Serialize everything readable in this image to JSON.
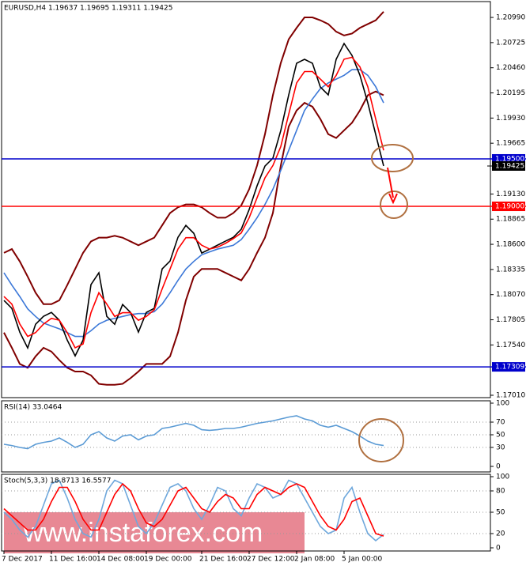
{
  "chart_data": [
    {
      "type": "line",
      "title": "EURUSD,H4  1.19637 1.19695 1.19311 1.19425",
      "categories": [
        "7 Dec 2017",
        null,
        null,
        null,
        null,
        null,
        "11 Dec 16:00",
        null,
        null,
        null,
        null,
        null,
        "14 Dec 08:00",
        null,
        null,
        null,
        null,
        null,
        "19 Dec 00:00",
        null,
        null,
        null,
        null,
        null,
        null,
        "21 Dec 16:00",
        null,
        null,
        null,
        null,
        null,
        "27 Dec 12:00",
        null,
        null,
        null,
        null,
        null,
        "2 Jan 08:00",
        null,
        null,
        null,
        null,
        null,
        "5 Jan 00:00",
        null,
        null,
        null,
        null,
        null
      ],
      "series": [
        {
          "color": "#800000",
          "values": [
            1.1851,
            1.1855,
            1.1842,
            1.1826,
            1.1809,
            1.1797,
            1.1797,
            1.1801,
            1.1817,
            1.1834,
            1.1851,
            1.1863,
            1.1867,
            1.1867,
            1.1869,
            1.1867,
            1.1863,
            1.1859,
            1.1863,
            1.1867,
            1.188,
            1.1893,
            1.1899,
            1.1902,
            1.1902,
            1.1899,
            1.1893,
            1.1888,
            1.1888,
            1.1893,
            1.1901,
            1.1918,
            1.1943,
            1.1976,
            1.2017,
            1.2051,
            1.2076,
            1.2088,
            1.2099,
            1.2099,
            1.2096,
            1.2092,
            1.2084,
            1.208,
            1.2082,
            1.2088,
            1.2092,
            1.2096,
            1.2105
          ]
        },
        {
          "color": "#800000",
          "values": [
            1.1767,
            1.1751,
            1.1734,
            1.173,
            1.1742,
            1.1751,
            1.1747,
            1.1738,
            1.173,
            1.1726,
            1.1726,
            1.1722,
            1.1713,
            1.1712,
            1.1712,
            1.1713,
            1.1719,
            1.1726,
            1.1734,
            1.1734,
            1.1734,
            1.1742,
            1.1767,
            1.1801,
            1.1826,
            1.1834,
            1.1834,
            1.1834,
            1.183,
            1.1826,
            1.1822,
            1.1834,
            1.1851,
            1.1867,
            1.1893,
            1.1943,
            1.1984,
            1.2001,
            1.2009,
            1.2005,
            1.1992,
            1.1976,
            1.1972,
            1.198,
            1.1988,
            1.2001,
            1.2017,
            1.2021,
            1.2017
          ]
        },
        {
          "color": "#3c78d8",
          "values": [
            1.183,
            1.1817,
            1.1805,
            1.1792,
            1.1784,
            1.1777,
            1.1774,
            1.1771,
            1.1767,
            1.1763,
            1.1763,
            1.1769,
            1.1776,
            1.178,
            1.1782,
            1.1784,
            1.1786,
            1.1787,
            1.1787,
            1.1789,
            1.1797,
            1.1809,
            1.1822,
            1.1834,
            1.1842,
            1.1849,
            1.1852,
            1.1855,
            1.1857,
            1.1859,
            1.1865,
            1.1876,
            1.1888,
            1.1902,
            1.1918,
            1.1938,
            1.1959,
            1.198,
            1.2001,
            1.2013,
            1.2024,
            1.203,
            1.2034,
            1.2038,
            1.2044,
            1.2044,
            1.2038,
            1.2026,
            1.2009
          ]
        },
        {
          "color": "#000000",
          "values": [
            1.18009,
            1.17925,
            1.17675,
            1.17508,
            1.17758,
            1.17841,
            1.17883,
            1.178,
            1.17591,
            1.17425,
            1.17591,
            1.18175,
            1.183,
            1.17841,
            1.17758,
            1.17966,
            1.17883,
            1.17675,
            1.17883,
            1.17925,
            1.18341,
            1.18424,
            1.18674,
            1.18799,
            1.18716,
            1.18508,
            1.18549,
            1.18591,
            1.18633,
            1.18674,
            1.18758,
            1.18966,
            1.19216,
            1.19424,
            1.19507,
            1.19799,
            1.20174,
            1.20507,
            1.20549,
            1.20507,
            1.20257,
            1.20174,
            1.20549,
            1.20715,
            1.2059,
            1.20382,
            1.2009,
            1.19757,
            1.19425
          ]
        },
        {
          "color": "#ff0000",
          "values": [
            1.1805,
            1.1797,
            1.1776,
            1.1763,
            1.1767,
            1.1776,
            1.1782,
            1.178,
            1.1767,
            1.1751,
            1.1755,
            1.1788,
            1.1809,
            1.1797,
            1.1784,
            1.1788,
            1.1788,
            1.178,
            1.1784,
            1.1791,
            1.1813,
            1.1834,
            1.1855,
            1.1867,
            1.1867,
            1.1859,
            1.1855,
            1.1857,
            1.1861,
            1.1866,
            1.1872,
            1.1888,
            1.1909,
            1.193,
            1.1943,
            1.1963,
            1.1997,
            1.203,
            1.2042,
            1.2042,
            1.2034,
            1.2026,
            1.2038,
            1.2055,
            1.2057,
            1.2047,
            1.2026,
            1.1992,
            1.1959
          ]
        }
      ],
      "ylim": [
        1.16985,
        1.21157
      ],
      "yticks": [
        {
          "value": 1.2099,
          "label": "1.20990"
        },
        1.20725,
        {
          "value": 1.2046,
          "label": "1.20460"
        },
        1.20195,
        {
          "value": 1.1993,
          "label": "1.19930"
        },
        1.19665,
        {
          "value": 1.1913,
          "label": "1.19130"
        },
        1.18865,
        {
          "value": 1.186,
          "label": "1.18600"
        },
        1.18335,
        {
          "value": 1.1807,
          "label": "1.18070"
        },
        1.17805,
        {
          "value": 1.1754,
          "label": "1.17540"
        },
        {
          "value": 1.1701,
          "label": "1.17010"
        }
      ],
      "levels": [
        {
          "value": 1.195,
          "label": "1.19500",
          "color": "#0000cc"
        },
        {
          "value": 1.19,
          "label": "1.19000",
          "color": "#ff0000"
        },
        {
          "value": 1.17309,
          "color": "#0000cc"
        }
      ],
      "last_price": 1.19425
    },
    {
      "type": "line",
      "title": "RSI(14) 33.0464",
      "series": [
        {
          "color": "#5b9bd5",
          "values": [
            35,
            33,
            30,
            28,
            35,
            38,
            40,
            45,
            38,
            30,
            35,
            50,
            55,
            45,
            40,
            48,
            50,
            42,
            48,
            50,
            60,
            62,
            65,
            68,
            65,
            58,
            57,
            58,
            60,
            60,
            62,
            65,
            68,
            70,
            72,
            75,
            78,
            80,
            75,
            72,
            65,
            62,
            65,
            60,
            55,
            48,
            40,
            35,
            33.0464
          ]
        }
      ],
      "ylim": [
        0,
        100
      ],
      "yticks": [
        100,
        70,
        50,
        30,
        0
      ],
      "grid": true
    },
    {
      "type": "line",
      "title": "Stoch(5,3,3) 18.8713 16.5577",
      "series": [
        {
          "color": "#6fa8dc",
          "values": [
            50,
            40,
            25,
            15,
            30,
            60,
            90,
            95,
            70,
            40,
            20,
            15,
            40,
            80,
            95,
            90,
            60,
            30,
            20,
            35,
            60,
            85,
            90,
            80,
            55,
            40,
            60,
            85,
            80,
            55,
            45,
            70,
            90,
            85,
            70,
            75,
            95,
            90,
            70,
            50,
            30,
            20,
            25,
            70,
            85,
            50,
            20,
            10,
            18.8713
          ]
        },
        {
          "color": "#ff0000",
          "values": [
            55,
            45,
            35,
            25,
            25,
            40,
            65,
            85,
            85,
            65,
            40,
            25,
            25,
            50,
            75,
            90,
            80,
            55,
            35,
            30,
            40,
            60,
            80,
            85,
            70,
            55,
            50,
            65,
            75,
            70,
            55,
            55,
            75,
            85,
            80,
            75,
            85,
            90,
            85,
            65,
            45,
            30,
            25,
            40,
            65,
            70,
            45,
            20,
            16.5577
          ]
        }
      ],
      "ylim": [
        0,
        100
      ],
      "yticks": [
        100,
        80,
        50,
        20,
        0
      ],
      "grid": true
    }
  ],
  "watermark": "www.instaforex.com"
}
